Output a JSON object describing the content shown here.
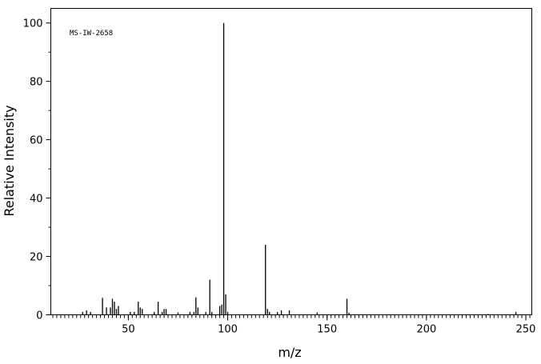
{
  "chart_data": {
    "type": "stem",
    "annotation": "MS-IW-2658",
    "x_label": "m/z",
    "y_label": "Relative Intensity",
    "x": [
      27,
      29,
      31,
      37,
      39,
      41,
      42,
      43,
      44,
      45,
      51,
      53,
      55,
      56,
      57,
      63,
      65,
      67,
      68,
      69,
      75,
      81,
      83,
      84,
      85,
      89,
      91,
      92,
      96,
      97,
      98,
      99,
      100,
      119,
      120,
      121,
      125,
      127,
      131,
      145,
      160,
      161,
      231,
      245
    ],
    "values": [
      1,
      1.5,
      1,
      5.8,
      2.5,
      2.5,
      5.5,
      4.5,
      2,
      3,
      1,
      1,
      4.5,
      2.5,
      2,
      1,
      4.5,
      1,
      2,
      2,
      0.8,
      1,
      1,
      6,
      2.5,
      1,
      12,
      1,
      3,
      3.5,
      100,
      7,
      1,
      24,
      2,
      1,
      1,
      1.5,
      1.5,
      0.8,
      5.5,
      0.7,
      0.3,
      1
    ],
    "color": "#000000",
    "xlim": [
      11,
      253
    ],
    "ylim": [
      0,
      105
    ],
    "xticks": [
      50,
      100,
      150,
      200,
      250
    ],
    "yticks": [
      0,
      20,
      40,
      60,
      80,
      100
    ]
  }
}
